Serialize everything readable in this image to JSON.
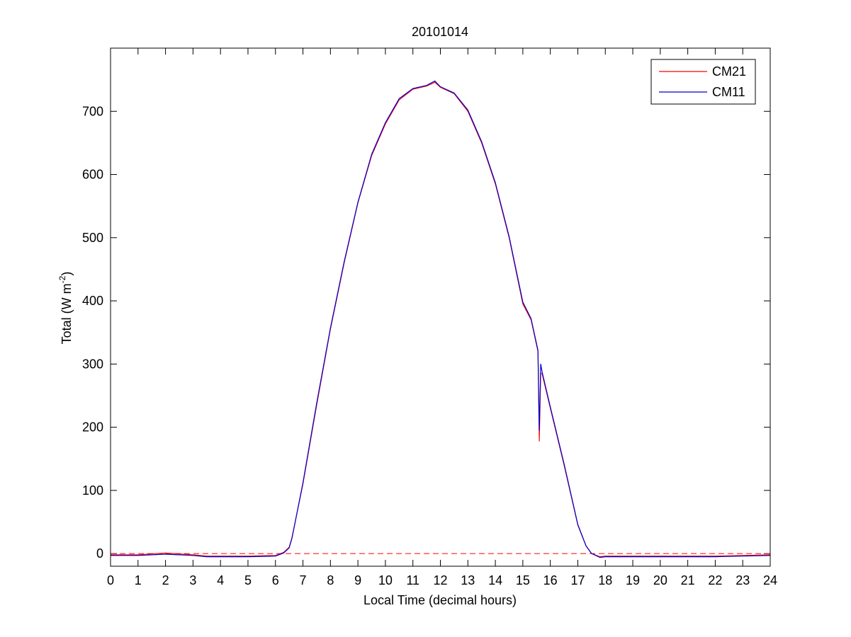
{
  "chart_data": {
    "type": "line",
    "title": "20101014",
    "xlabel": "Local Time (decimal hours)",
    "ylabel": "Total (W m",
    "ylabel_sup": "-2",
    "ylabel_close": ")",
    "xlim": [
      0,
      24
    ],
    "ylim": [
      -20,
      800
    ],
    "xticks": [
      0,
      1,
      2,
      3,
      4,
      5,
      6,
      7,
      8,
      9,
      10,
      11,
      12,
      13,
      14,
      15,
      16,
      17,
      18,
      19,
      20,
      21,
      22,
      23,
      24
    ],
    "yticks": [
      0,
      100,
      200,
      300,
      400,
      500,
      600,
      700
    ],
    "grid": false,
    "legend_position": "top-right",
    "reference_line": {
      "y": 0,
      "color": "#ff0000",
      "style": "dashed"
    },
    "series": [
      {
        "name": "CM21",
        "color": "#ff0000",
        "x": [
          0,
          1,
          2,
          3,
          3.5,
          4,
          5,
          6,
          6.3,
          6.5,
          6.6,
          7,
          7.5,
          8,
          8.5,
          9,
          9.5,
          10,
          10.5,
          11,
          11.5,
          11.8,
          12,
          12.5,
          13,
          13.5,
          14,
          14.5,
          15,
          15.3,
          15.55,
          15.6,
          15.65,
          15.7,
          16,
          16.5,
          17,
          17.3,
          17.5,
          17.8,
          18,
          19,
          20,
          21,
          22,
          23,
          24
        ],
        "y": [
          -2,
          -2,
          1,
          -2,
          -4,
          -4,
          -4,
          -3,
          2,
          10,
          25,
          110,
          235,
          355,
          460,
          555,
          630,
          680,
          718,
          735,
          740,
          746,
          738,
          728,
          700,
          650,
          585,
          500,
          395,
          370,
          320,
          178,
          285,
          285,
          230,
          140,
          45,
          12,
          0,
          -5,
          -4,
          -4,
          -4,
          -4,
          -4,
          -3,
          -2
        ]
      },
      {
        "name": "CM11",
        "color": "#0000cc",
        "x": [
          0,
          1,
          2,
          3,
          3.5,
          4,
          5,
          6,
          6.3,
          6.5,
          6.6,
          7,
          7.5,
          8,
          8.5,
          9,
          9.5,
          10,
          10.5,
          11,
          11.5,
          11.8,
          12,
          12.5,
          13,
          13.5,
          14,
          14.5,
          15,
          15.3,
          15.55,
          15.6,
          15.65,
          15.7,
          16,
          16.5,
          17,
          17.3,
          17.5,
          17.8,
          18,
          19,
          20,
          21,
          22,
          23,
          24
        ],
        "y": [
          -3,
          -3,
          -1,
          -3,
          -5,
          -5,
          -5,
          -4,
          1,
          9,
          24,
          112,
          238,
          357,
          462,
          556,
          632,
          682,
          720,
          736,
          741,
          748,
          739,
          729,
          702,
          652,
          587,
          502,
          398,
          372,
          322,
          195,
          300,
          288,
          232,
          142,
          46,
          12,
          0,
          -6,
          -5,
          -5,
          -5,
          -5,
          -5,
          -4,
          -3
        ]
      }
    ]
  }
}
